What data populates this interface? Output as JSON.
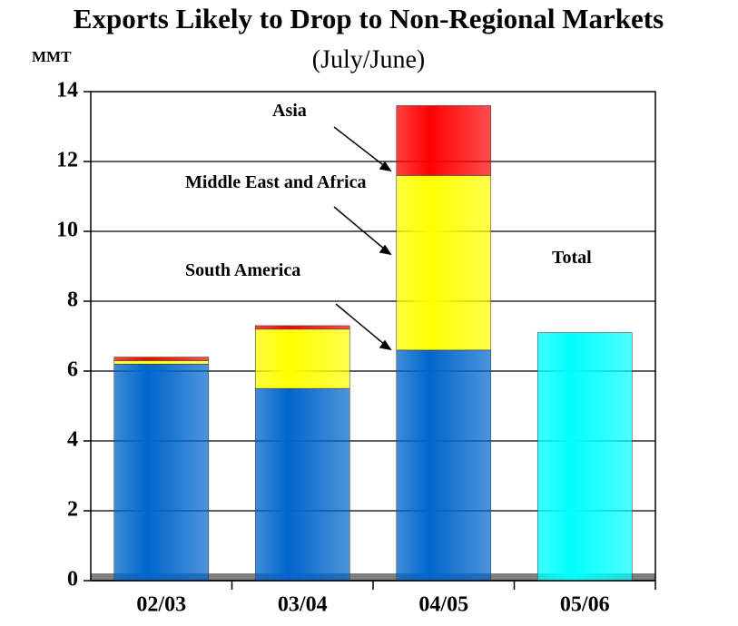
{
  "chart_data": {
    "type": "stacked_bar",
    "title": "Exports Likely to Drop to Non-Regional Markets",
    "subtitle": "(July/June)",
    "ylabel": "MMT",
    "categories": [
      "02/03",
      "03/04",
      "04/05",
      "05/06"
    ],
    "series": [
      {
        "name": "South America",
        "color": "#0066cc",
        "values": [
          6.2,
          5.5,
          6.6,
          null
        ]
      },
      {
        "name": "Middle East and Africa",
        "color": "#ffff00",
        "values": [
          0.1,
          1.7,
          5.0,
          null
        ]
      },
      {
        "name": "Asia",
        "color": "#ff0000",
        "values": [
          0.1,
          0.1,
          2.0,
          null
        ]
      },
      {
        "name": "Total",
        "color": "#00ffff",
        "values": [
          null,
          null,
          null,
          7.1
        ]
      }
    ],
    "ylim": [
      0,
      14
    ],
    "yticks": [
      0,
      2,
      4,
      6,
      8,
      10,
      12,
      14
    ],
    "grid": true
  }
}
